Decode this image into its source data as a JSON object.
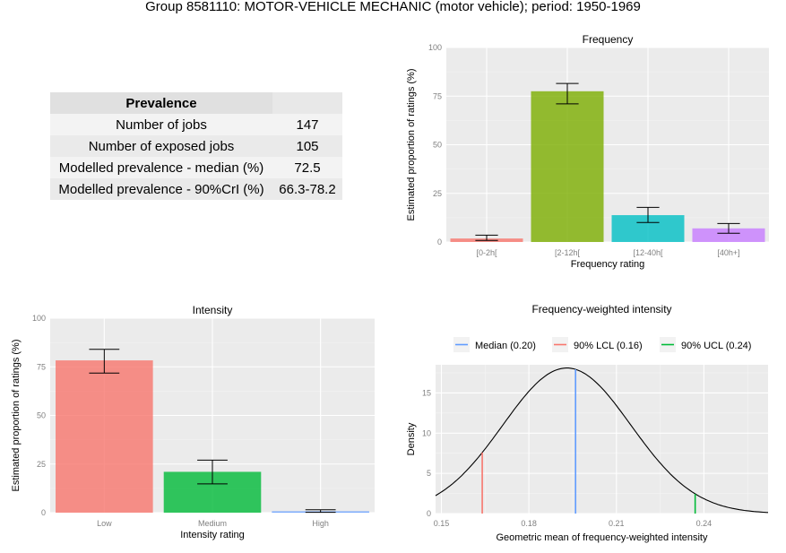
{
  "page": {
    "title": "Group 8581110: MOTOR-VEHICLE MECHANIC (motor vehicle); period: 1950-1969"
  },
  "prevalence_table": {
    "header": "Prevalence",
    "rows": [
      {
        "label": "Number of jobs",
        "value": "147"
      },
      {
        "label": "Number of exposed jobs",
        "value": "105"
      },
      {
        "label": "Modelled prevalence - median (%)",
        "value": "72.5"
      },
      {
        "label": "Modelled prevalence - 90%CrI (%)",
        "value": "66.3-78.2"
      }
    ]
  },
  "chart_data": [
    {
      "type": "bar",
      "title": "Frequency",
      "xlabel": "Frequency rating",
      "ylabel": "Estimated proportion of ratings (%)",
      "categories": [
        "[0-2h[",
        "[2-12h[",
        "[12-40h[",
        "[40h+]"
      ],
      "values": [
        1.8,
        77.5,
        13.8,
        7.0
      ],
      "error_low": [
        0.8,
        71.0,
        10.0,
        4.5
      ],
      "error_high": [
        3.5,
        81.5,
        17.8,
        9.5
      ],
      "colors": [
        "#f8766d",
        "#7cae00",
        "#00bfc4",
        "#c77cff"
      ],
      "ylim": [
        0,
        100
      ],
      "yticks": [
        0,
        25,
        50,
        75,
        100
      ]
    },
    {
      "type": "bar",
      "title": "Intensity",
      "xlabel": "Intensity rating",
      "ylabel": "Estimated proportion of ratings (%)",
      "categories": [
        "Low",
        "Medium",
        "High"
      ],
      "values": [
        78.3,
        21.0,
        0.7
      ],
      "error_low": [
        71.8,
        14.8,
        0.2
      ],
      "error_high": [
        84.0,
        27.0,
        1.5
      ],
      "colors": [
        "#f8766d",
        "#00ba38",
        "#619cff"
      ],
      "ylim": [
        0,
        100
      ],
      "yticks": [
        0,
        25,
        50,
        75,
        100
      ]
    },
    {
      "type": "line",
      "title": "Frequency-weighted intensity",
      "xlabel": "Geometric mean of frequency-weighted intensity",
      "ylabel": "Density",
      "xlim": [
        0.148,
        0.262
      ],
      "ylim": [
        0,
        18.5
      ],
      "xticks": [
        0.15,
        0.18,
        0.21,
        0.24
      ],
      "xtick_labels": [
        "0.15",
        "0.18",
        "0.21",
        "0.24"
      ],
      "yticks": [
        0,
        5,
        10,
        15
      ],
      "density": {
        "mean": 0.193,
        "sd": 0.022,
        "peak": 18.1
      },
      "legend_position": "top",
      "vlines": [
        {
          "label": "Median (0.20)",
          "x": 0.196,
          "color": "#619cff"
        },
        {
          "label": "90% LCL (0.16)",
          "x": 0.164,
          "color": "#f8766d"
        },
        {
          "label": "90% UCL (0.24)",
          "x": 0.237,
          "color": "#00ba38"
        }
      ]
    }
  ]
}
